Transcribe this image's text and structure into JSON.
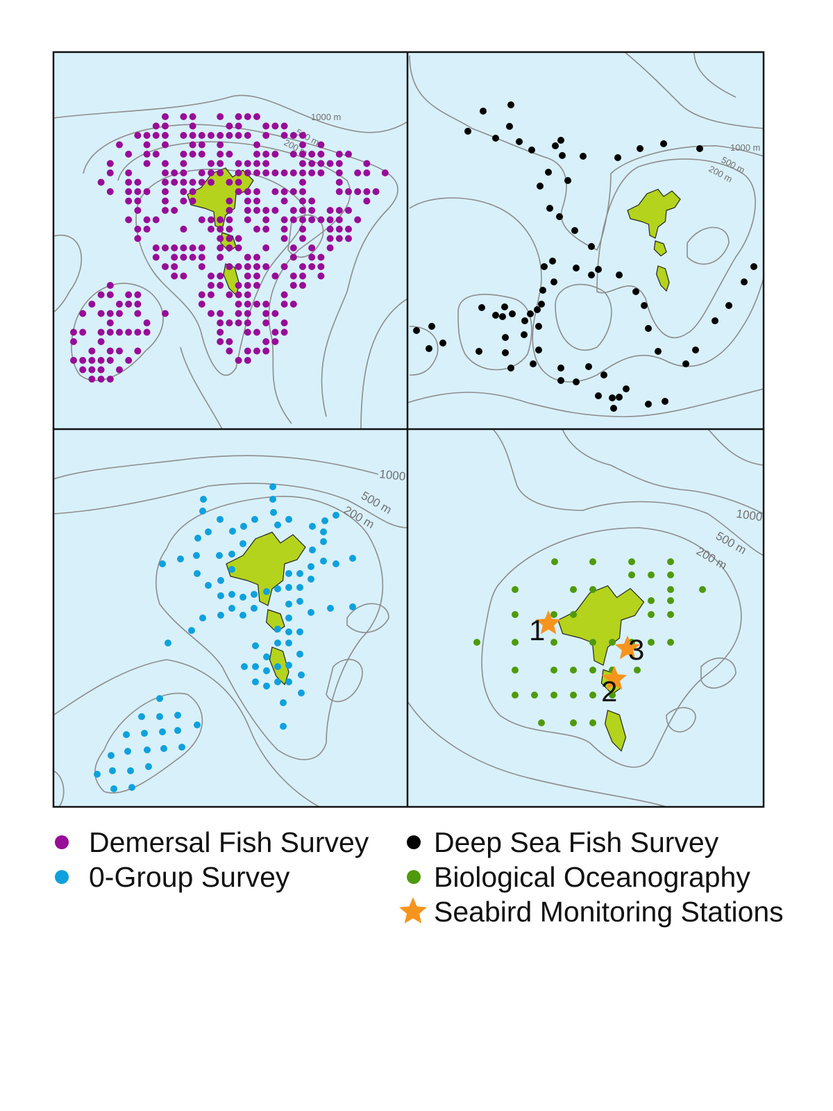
{
  "colors": {
    "sea": "#d8f0fa",
    "land": "#b4d31c",
    "contour": "#8c8c8c",
    "demersal": "#980c98",
    "deep_sea": "#000000",
    "zero_group": "#0ea1de",
    "bio_oceanography": "#4f9a0c",
    "seabird": "#f7941d"
  },
  "panels": [
    {
      "survey": "Demersal Fish Survey",
      "contour_labels": [
        "1000 m",
        "500 m",
        "200 m"
      ]
    },
    {
      "survey": "Deep Sea Fish Survey",
      "contour_labels": [
        "1000 m",
        "500 m",
        "200 m"
      ]
    },
    {
      "survey": "0-Group Survey",
      "contour_labels": [
        "1000",
        "500 m",
        "200 m"
      ]
    },
    {
      "survey": "Biological Oceanography",
      "contour_labels": [
        "1000",
        "500 m",
        "200 m"
      ],
      "station_numbers": [
        "1",
        "2",
        "3"
      ]
    }
  ],
  "legend": [
    {
      "label": "Demersal Fish Survey",
      "symbol": "circle",
      "color": "#980c98"
    },
    {
      "label": "Deep Sea Fish Survey",
      "symbol": "circle",
      "color": "#000000"
    },
    {
      "label": "0-Group Survey",
      "symbol": "circle",
      "color": "#0ea1de"
    },
    {
      "label": "Biological Oceanography",
      "symbol": "circle",
      "color": "#4f9a0c"
    },
    {
      "label": "Seabird Monitoring Stations",
      "symbol": "star",
      "color": "#f7941d"
    }
  ]
}
